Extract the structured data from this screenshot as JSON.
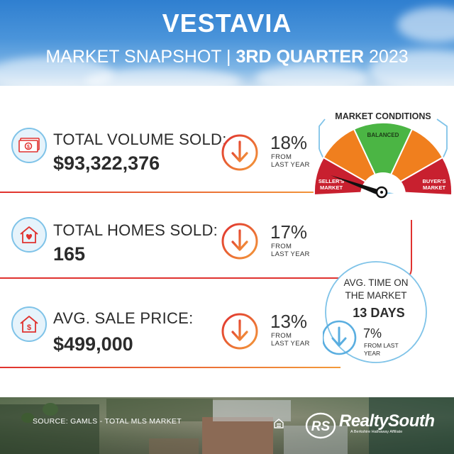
{
  "header": {
    "title": "VESTAVIA",
    "subtitle_prefix": "MARKET SNAPSHOT | ",
    "subtitle_bold": "3RD QUARTER",
    "subtitle_suffix": " 2023"
  },
  "stats": [
    {
      "label": "TOTAL VOLUME SOLD:",
      "value": "$93,322,376",
      "change": "18%",
      "change_note_1": "FROM",
      "change_note_2": "LAST YEAR",
      "icon": "money-icon"
    },
    {
      "label": "TOTAL HOMES SOLD:",
      "value": "165",
      "change": "17%",
      "change_note_1": "FROM",
      "change_note_2": "LAST YEAR",
      "icon": "home-heart-icon"
    },
    {
      "label": "AVG. SALE PRICE:",
      "value": "$499,000",
      "change": "13%",
      "change_note_1": "FROM",
      "change_note_2": "LAST YEAR",
      "icon": "home-dollar-icon"
    }
  ],
  "market_conditions": {
    "title": "MARKET CONDITIONS",
    "sellers_1": "SELLER'S",
    "sellers_2": "MARKET",
    "balanced": "BALANCED",
    "buyers_1": "BUYER'S",
    "buyers_2": "MARKET",
    "needle_position": "seller's market",
    "colors": {
      "sellers": "#c8202f",
      "mid": "#f07f1e",
      "balanced": "#4bb544",
      "ring": "#7fc3e8"
    }
  },
  "time_on_market": {
    "line1": "AVG. TIME ON",
    "line2": "THE MARKET",
    "value": "13 DAYS",
    "change": "7%",
    "note_1": "FROM LAST",
    "note_2": "YEAR"
  },
  "footer": {
    "source": "SOURCE: GAMLS - TOTAL MLS MARKET",
    "brand": "RealtySouth",
    "tagline": "A Berkshire Hathaway Affiliate",
    "logo_initials": "RS"
  },
  "colors": {
    "accent_red": "#e0322f",
    "accent_orange": "#f39a3a",
    "accent_blue": "#5aaee0",
    "text": "#2b2b2b"
  }
}
